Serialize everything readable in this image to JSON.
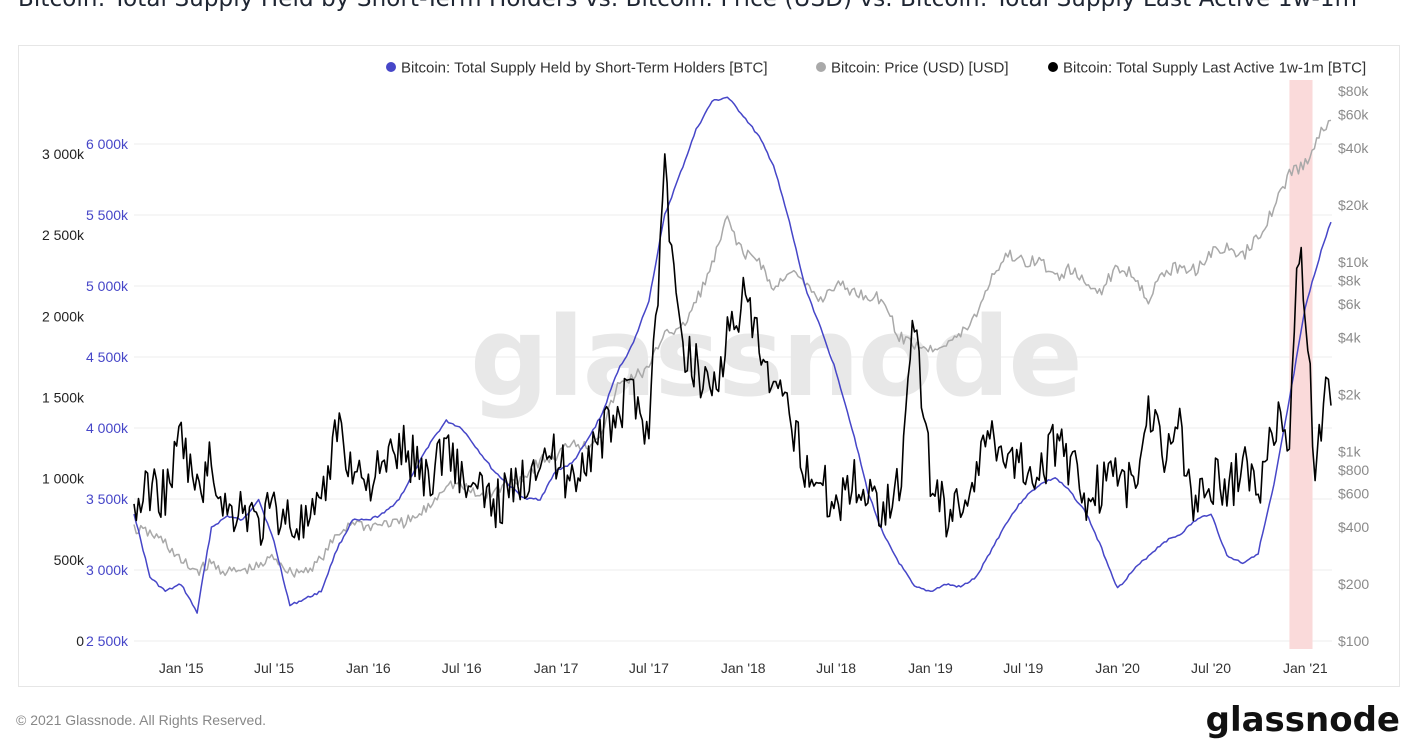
{
  "title": "Bitcoin: Total Supply Held by Short-Term Holders vs. Bitcoin: Price (USD) vs. Bitcoin: Total Supply Last Active 1w-1m",
  "footer": "© 2021 Glassnode. All Rights Reserved.",
  "brand": "glassnode",
  "watermark": "glassnode",
  "chart_data": {
    "type": "line",
    "x_ticks": [
      "Jan '15",
      "Jul '15",
      "Jan '16",
      "Jul '16",
      "Jan '17",
      "Jul '17",
      "Jan '18",
      "Jul '18",
      "Jan '19",
      "Jul '19",
      "Jan '20",
      "Jul '20",
      "Jan '21"
    ],
    "left_axis_ticks": [
      "0",
      "500k",
      "1 000k",
      "1 500k",
      "2 000k",
      "2 500k",
      "3 000k"
    ],
    "blue_axis_ticks": [
      "2 500k",
      "3 000k",
      "3 500k",
      "4 000k",
      "4 500k",
      "5 000k",
      "5 500k",
      "6 000k"
    ],
    "right_axis_ticks": [
      "$100",
      "$200",
      "$400",
      "$600",
      "$800",
      "$1k",
      "$2k",
      "$4k",
      "$6k",
      "$8k",
      "$10k",
      "$20k",
      "$40k",
      "$60k",
      "$80k"
    ],
    "right_axis_scale": "log",
    "highlight": {
      "from": "2020-12-01",
      "to": "2021-01-15",
      "color": "#fadada"
    },
    "series": [
      {
        "name": "Bitcoin: Total Supply Held by Short-Term Holders [BTC]",
        "color": "#4646c8",
        "axis": "blue",
        "points": [
          [
            "2014-10-01",
            3400000
          ],
          [
            "2014-11-01",
            2950000
          ],
          [
            "2014-12-01",
            2850000
          ],
          [
            "2015-01-01",
            2900000
          ],
          [
            "2015-02-01",
            2700000
          ],
          [
            "2015-03-01",
            3300000
          ],
          [
            "2015-04-01",
            3380000
          ],
          [
            "2015-05-01",
            3350000
          ],
          [
            "2015-06-01",
            3500000
          ],
          [
            "2015-07-01",
            3200000
          ],
          [
            "2015-08-01",
            2750000
          ],
          [
            "2015-09-01",
            2800000
          ],
          [
            "2015-10-01",
            2850000
          ],
          [
            "2015-11-01",
            3150000
          ],
          [
            "2015-12-01",
            3350000
          ],
          [
            "2016-01-01",
            3350000
          ],
          [
            "2016-02-01",
            3400000
          ],
          [
            "2016-03-01",
            3500000
          ],
          [
            "2016-04-01",
            3700000
          ],
          [
            "2016-05-01",
            3900000
          ],
          [
            "2016-06-01",
            4050000
          ],
          [
            "2016-07-01",
            4000000
          ],
          [
            "2016-08-01",
            3850000
          ],
          [
            "2016-09-01",
            3700000
          ],
          [
            "2016-10-01",
            3600000
          ],
          [
            "2016-11-01",
            3500000
          ],
          [
            "2016-12-01",
            3500000
          ],
          [
            "2017-01-01",
            3700000
          ],
          [
            "2017-02-01",
            3750000
          ],
          [
            "2017-03-01",
            3900000
          ],
          [
            "2017-04-01",
            4100000
          ],
          [
            "2017-05-01",
            4400000
          ],
          [
            "2017-06-01",
            4600000
          ],
          [
            "2017-07-01",
            4900000
          ],
          [
            "2017-08-01",
            5500000
          ],
          [
            "2017-09-01",
            5800000
          ],
          [
            "2017-10-01",
            6100000
          ],
          [
            "2017-11-01",
            6300000
          ],
          [
            "2017-12-01",
            6330000
          ],
          [
            "2018-01-01",
            6200000
          ],
          [
            "2018-02-01",
            6050000
          ],
          [
            "2018-03-01",
            5850000
          ],
          [
            "2018-04-01",
            5450000
          ],
          [
            "2018-05-01",
            5000000
          ],
          [
            "2018-06-01",
            4700000
          ],
          [
            "2018-07-01",
            4400000
          ],
          [
            "2018-08-01",
            4000000
          ],
          [
            "2018-09-01",
            3550000
          ],
          [
            "2018-10-01",
            3250000
          ],
          [
            "2018-11-01",
            3050000
          ],
          [
            "2018-12-01",
            2880000
          ],
          [
            "2019-01-01",
            2850000
          ],
          [
            "2019-02-01",
            2900000
          ],
          [
            "2019-03-01",
            2880000
          ],
          [
            "2019-04-01",
            2950000
          ],
          [
            "2019-05-01",
            3150000
          ],
          [
            "2019-06-01",
            3350000
          ],
          [
            "2019-07-01",
            3500000
          ],
          [
            "2019-08-01",
            3600000
          ],
          [
            "2019-09-01",
            3650000
          ],
          [
            "2019-10-01",
            3550000
          ],
          [
            "2019-11-01",
            3400000
          ],
          [
            "2019-12-01",
            3150000
          ],
          [
            "2020-01-01",
            2870000
          ],
          [
            "2020-02-01",
            3000000
          ],
          [
            "2020-03-01",
            3100000
          ],
          [
            "2020-04-01",
            3200000
          ],
          [
            "2020-05-01",
            3250000
          ],
          [
            "2020-06-01",
            3350000
          ],
          [
            "2020-07-01",
            3400000
          ],
          [
            "2020-08-01",
            3100000
          ],
          [
            "2020-09-01",
            3050000
          ],
          [
            "2020-10-01",
            3120000
          ],
          [
            "2020-11-01",
            3600000
          ],
          [
            "2020-12-01",
            4200000
          ],
          [
            "2021-01-01",
            4850000
          ],
          [
            "2021-02-01",
            5250000
          ],
          [
            "2021-02-20",
            5450000
          ]
        ]
      },
      {
        "name": "Bitcoin: Price (USD) [USD]",
        "color": "#a9a9a9",
        "axis": "right",
        "points": [
          [
            "2014-10-01",
            390
          ],
          [
            "2014-11-01",
            370
          ],
          [
            "2014-12-01",
            330
          ],
          [
            "2015-01-01",
            260
          ],
          [
            "2015-02-01",
            235
          ],
          [
            "2015-03-01",
            255
          ],
          [
            "2015-04-01",
            230
          ],
          [
            "2015-05-01",
            235
          ],
          [
            "2015-06-01",
            245
          ],
          [
            "2015-07-01",
            280
          ],
          [
            "2015-08-01",
            230
          ],
          [
            "2015-09-01",
            235
          ],
          [
            "2015-10-01",
            270
          ],
          [
            "2015-11-01",
            360
          ],
          [
            "2015-12-01",
            430
          ],
          [
            "2016-01-01",
            400
          ],
          [
            "2016-02-01",
            420
          ],
          [
            "2016-03-01",
            415
          ],
          [
            "2016-04-01",
            440
          ],
          [
            "2016-05-01",
            520
          ],
          [
            "2016-06-01",
            680
          ],
          [
            "2016-07-01",
            660
          ],
          [
            "2016-08-01",
            580
          ],
          [
            "2016-09-01",
            610
          ],
          [
            "2016-10-01",
            680
          ],
          [
            "2016-11-01",
            740
          ],
          [
            "2016-12-01",
            900
          ],
          [
            "2017-01-01",
            930
          ],
          [
            "2017-02-01",
            1150
          ],
          [
            "2017-03-01",
            1050
          ],
          [
            "2017-04-01",
            1300
          ],
          [
            "2017-05-01",
            2200
          ],
          [
            "2017-06-01",
            2500
          ],
          [
            "2017-07-01",
            2700
          ],
          [
            "2017-08-01",
            4400
          ],
          [
            "2017-09-01",
            4300
          ],
          [
            "2017-10-01",
            6200
          ],
          [
            "2017-11-01",
            9500
          ],
          [
            "2017-12-01",
            17000
          ],
          [
            "2018-01-01",
            11000
          ],
          [
            "2018-02-01",
            10300
          ],
          [
            "2018-03-01",
            7000
          ],
          [
            "2018-04-01",
            9200
          ],
          [
            "2018-05-01",
            7500
          ],
          [
            "2018-06-01",
            6300
          ],
          [
            "2018-07-01",
            7700
          ],
          [
            "2018-08-01",
            7000
          ],
          [
            "2018-09-01",
            6600
          ],
          [
            "2018-10-01",
            6400
          ],
          [
            "2018-11-01",
            4000
          ],
          [
            "2018-12-01",
            3700
          ],
          [
            "2019-01-01",
            3450
          ],
          [
            "2019-02-01",
            3800
          ],
          [
            "2019-03-01",
            4100
          ],
          [
            "2019-04-01",
            5300
          ],
          [
            "2019-05-01",
            8500
          ],
          [
            "2019-06-01",
            11000
          ],
          [
            "2019-07-01",
            10000
          ],
          [
            "2019-08-01",
            10200
          ],
          [
            "2019-09-01",
            8300
          ],
          [
            "2019-10-01",
            9200
          ],
          [
            "2019-11-01",
            7500
          ],
          [
            "2019-12-01",
            7200
          ],
          [
            "2020-01-01",
            9400
          ],
          [
            "2020-02-01",
            8700
          ],
          [
            "2020-03-01",
            6400
          ],
          [
            "2020-04-01",
            8800
          ],
          [
            "2020-05-01",
            9500
          ],
          [
            "2020-06-01",
            9100
          ],
          [
            "2020-07-01",
            11300
          ],
          [
            "2020-08-01",
            11700
          ],
          [
            "2020-09-01",
            10700
          ],
          [
            "2020-10-01",
            13700
          ],
          [
            "2020-11-01",
            19500
          ],
          [
            "2020-12-01",
            29000
          ],
          [
            "2021-01-01",
            33000
          ],
          [
            "2021-02-01",
            48000
          ],
          [
            "2021-02-20",
            56000
          ]
        ]
      },
      {
        "name": "Bitcoin: Total Supply Last Active 1w-1m [BTC]",
        "color": "#000000",
        "axis": "left",
        "points": [
          [
            "2014-10-01",
            800000
          ],
          [
            "2014-11-01",
            950000
          ],
          [
            "2014-12-01",
            900000
          ],
          [
            "2015-01-01",
            1250000
          ],
          [
            "2015-02-01",
            900000
          ],
          [
            "2015-03-01",
            1100000
          ],
          [
            "2015-04-01",
            780000
          ],
          [
            "2015-05-01",
            850000
          ],
          [
            "2015-06-01",
            700000
          ],
          [
            "2015-07-01",
            820000
          ],
          [
            "2015-08-01",
            750000
          ],
          [
            "2015-09-01",
            700000
          ],
          [
            "2015-10-01",
            780000
          ],
          [
            "2015-11-01",
            1350000
          ],
          [
            "2015-12-01",
            1050000
          ],
          [
            "2016-01-01",
            1000000
          ],
          [
            "2016-02-01",
            1050000
          ],
          [
            "2016-03-01",
            1200000
          ],
          [
            "2016-04-01",
            1100000
          ],
          [
            "2016-05-01",
            1000000
          ],
          [
            "2016-06-01",
            1250000
          ],
          [
            "2016-07-01",
            1000000
          ],
          [
            "2016-08-01",
            900000
          ],
          [
            "2016-09-01",
            850000
          ],
          [
            "2016-10-01",
            900000
          ],
          [
            "2016-11-01",
            1000000
          ],
          [
            "2016-12-01",
            1200000
          ],
          [
            "2017-01-01",
            1100000
          ],
          [
            "2017-02-01",
            1000000
          ],
          [
            "2017-03-01",
            1150000
          ],
          [
            "2017-04-01",
            1250000
          ],
          [
            "2017-05-01",
            1400000
          ],
          [
            "2017-06-01",
            1550000
          ],
          [
            "2017-07-01",
            1300000
          ],
          [
            "2017-08-01",
            2900000
          ],
          [
            "2017-09-01",
            1800000
          ],
          [
            "2017-10-01",
            1700000
          ],
          [
            "2017-11-01",
            1550000
          ],
          [
            "2017-12-01",
            1850000
          ],
          [
            "2018-01-01",
            2100000
          ],
          [
            "2018-02-01",
            1800000
          ],
          [
            "2018-03-01",
            1500000
          ],
          [
            "2018-04-01",
            1400000
          ],
          [
            "2018-05-01",
            1100000
          ],
          [
            "2018-06-01",
            950000
          ],
          [
            "2018-07-01",
            850000
          ],
          [
            "2018-08-01",
            1000000
          ],
          [
            "2018-09-01",
            900000
          ],
          [
            "2018-10-01",
            850000
          ],
          [
            "2018-11-01",
            950000
          ],
          [
            "2018-12-01",
            2000000
          ],
          [
            "2019-01-01",
            1000000
          ],
          [
            "2019-02-01",
            800000
          ],
          [
            "2019-03-01",
            850000
          ],
          [
            "2019-04-01",
            1050000
          ],
          [
            "2019-05-01",
            1300000
          ],
          [
            "2019-06-01",
            1150000
          ],
          [
            "2019-07-01",
            1100000
          ],
          [
            "2019-08-01",
            1050000
          ],
          [
            "2019-09-01",
            1200000
          ],
          [
            "2019-10-01",
            1100000
          ],
          [
            "2019-11-01",
            900000
          ],
          [
            "2019-12-01",
            950000
          ],
          [
            "2020-01-01",
            1050000
          ],
          [
            "2020-02-01",
            900000
          ],
          [
            "2020-03-01",
            1450000
          ],
          [
            "2020-04-01",
            1200000
          ],
          [
            "2020-05-01",
            1300000
          ],
          [
            "2020-06-01",
            800000
          ],
          [
            "2020-07-01",
            1000000
          ],
          [
            "2020-08-01",
            900000
          ],
          [
            "2020-09-01",
            1100000
          ],
          [
            "2020-10-01",
            900000
          ],
          [
            "2020-11-01",
            1350000
          ],
          [
            "2020-12-01",
            1300000
          ],
          [
            "2020-12-20",
            2450000
          ],
          [
            "2021-01-01",
            2000000
          ],
          [
            "2021-01-20",
            1100000
          ],
          [
            "2021-02-01",
            1300000
          ],
          [
            "2021-02-10",
            1750000
          ],
          [
            "2021-02-20",
            1450000
          ]
        ]
      }
    ]
  }
}
